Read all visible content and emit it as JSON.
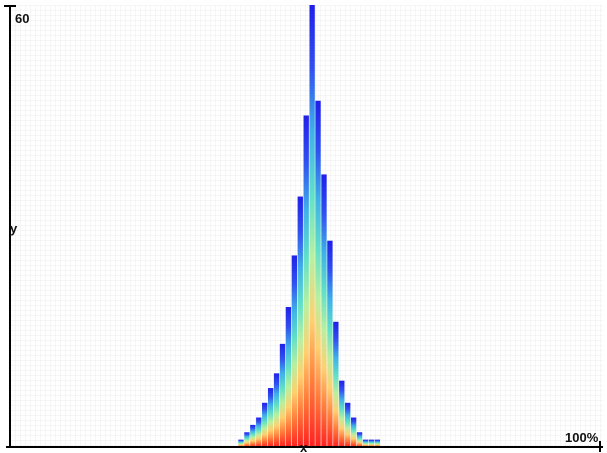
{
  "chart_data": {
    "type": "bar",
    "title": "",
    "xlabel": "x",
    "ylabel": "y",
    "y_max_label": "60",
    "x_max_label": "100%",
    "ylim": [
      0,
      60
    ],
    "xlim": [
      0,
      100
    ],
    "grid": true,
    "x": [
      39,
      40,
      41,
      42,
      43,
      44,
      45,
      46,
      47,
      48,
      49,
      50,
      51,
      52,
      53,
      54,
      55,
      56,
      57,
      58,
      59,
      60,
      61,
      62
    ],
    "values": [
      1,
      2,
      3,
      4,
      6,
      8,
      10,
      14,
      19,
      26,
      34,
      45,
      60,
      47,
      37,
      28,
      17,
      9,
      6,
      4,
      2,
      1,
      1,
      1
    ],
    "colormap": [
      "#ff2020",
      "#ff7a3a",
      "#ffd070",
      "#b8f0a0",
      "#60e0c8",
      "#40b0e8",
      "#3050f0",
      "#2020e8"
    ]
  }
}
